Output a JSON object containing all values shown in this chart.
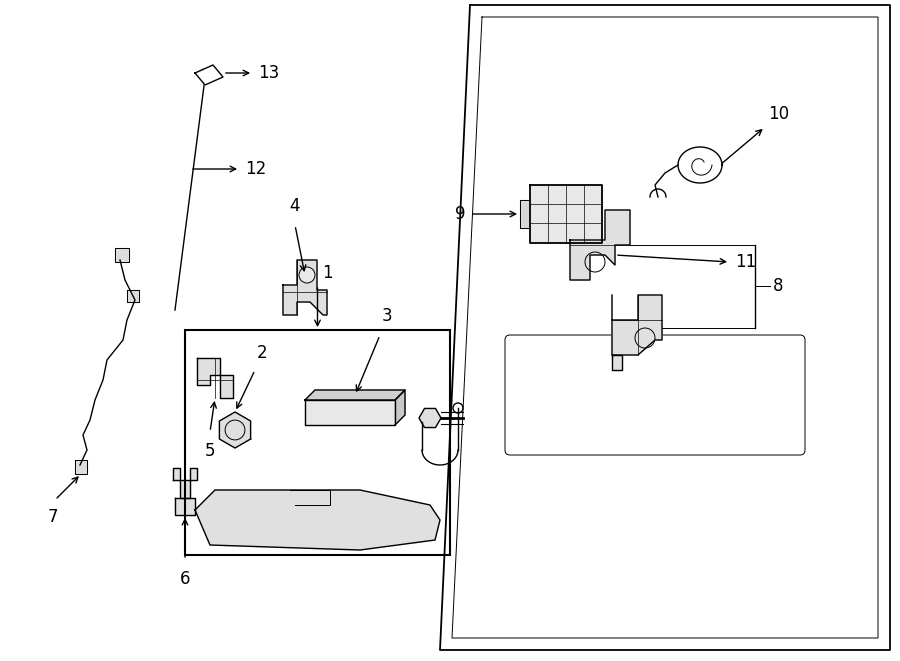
{
  "background_color": "#ffffff",
  "line_color": "#000000",
  "fig_width": 9.0,
  "fig_height": 6.61,
  "lw": 1.0,
  "lw_thin": 0.7,
  "font_size": 12
}
